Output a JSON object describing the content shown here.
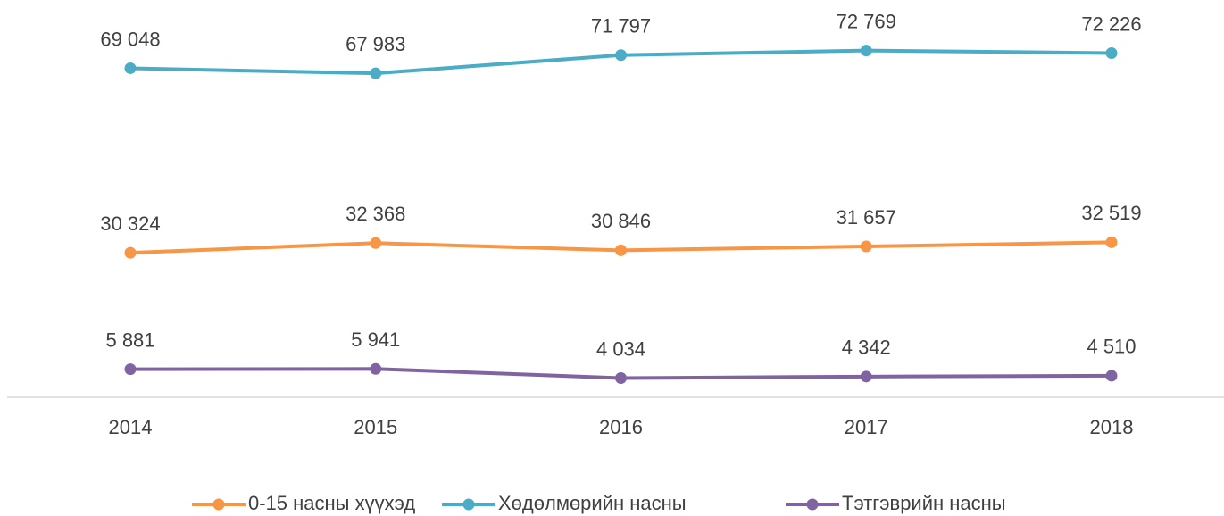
{
  "chart_data": {
    "type": "line",
    "categories": [
      "2014",
      "2015",
      "2016",
      "2017",
      "2018"
    ],
    "ylim": [
      0,
      80000
    ],
    "legend": "bottom",
    "series": [
      {
        "name": "0-15 насны хүүхэд",
        "color": "#f79646",
        "values": [
          30324,
          32368,
          30846,
          31657,
          32519
        ],
        "value_labels": [
          "30 324",
          "32 368",
          "30 846",
          "31 657",
          "32 519"
        ]
      },
      {
        "name": "Хөдөлмөрийн насны",
        "color": "#4bacc6",
        "values": [
          69048,
          67983,
          71797,
          72769,
          72226
        ],
        "value_labels": [
          "69 048",
          "67 983",
          "71 797",
          "72 769",
          "72 226"
        ]
      },
      {
        "name": "Тэтгэврийн насны",
        "color": "#8064a2",
        "values": [
          5881,
          5941,
          4034,
          4342,
          4510
        ],
        "value_labels": [
          "5 881",
          "5 941",
          "4 034",
          "4 342",
          "4 510"
        ]
      }
    ]
  }
}
